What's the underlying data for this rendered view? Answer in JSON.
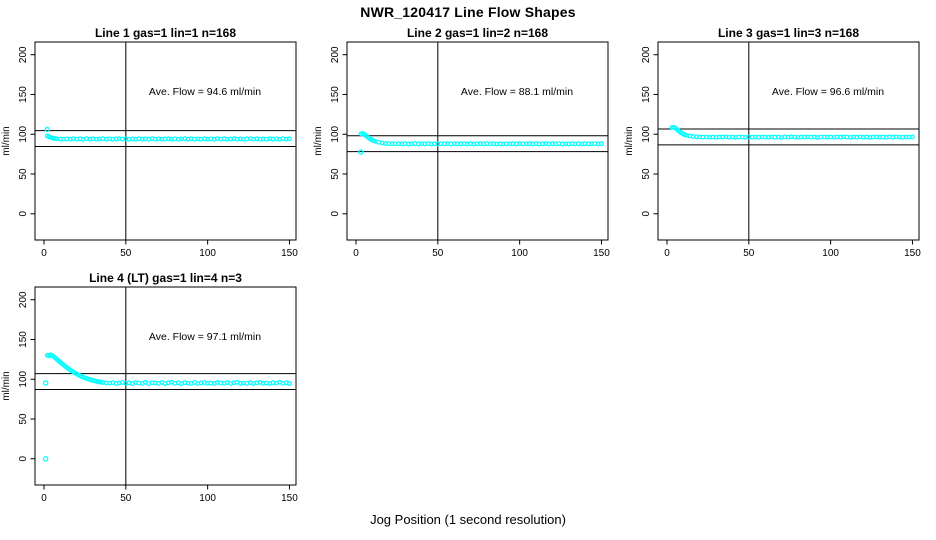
{
  "page": {
    "title": "NWR_120417  Line Flow Shapes",
    "xlabel": "Jog Position (1 second resolution)"
  },
  "style": {
    "point_color": "#00FFFF",
    "line_color": "#000000",
    "background": "#FFFFFF"
  },
  "chart_data": [
    {
      "type": "scatter",
      "title": "Line 1 gas=1 lin=1 n=168",
      "annotation": "Ave. Flow =  94.6  ml/min",
      "ave_flow_ml_min": 94.6,
      "ylabel": "ml/min",
      "xticks": [
        0,
        50,
        100,
        150
      ],
      "yticks": [
        0,
        50,
        100,
        150,
        200
      ],
      "xlim": [
        -5.5,
        154
      ],
      "ylim": [
        -33,
        216
      ],
      "vline_x": 50,
      "hlines": [
        104.6,
        84.6
      ],
      "grid": false,
      "legend": "none",
      "outliers": [
        [
          2,
          106
        ]
      ],
      "points": [
        [
          2,
          97.8
        ],
        [
          3,
          96.9
        ],
        [
          4,
          96.2
        ],
        [
          5,
          95.3
        ],
        [
          6,
          94.8
        ],
        [
          7,
          94.5
        ],
        [
          8,
          94.2
        ],
        [
          10,
          94.0
        ],
        [
          12,
          93.9
        ],
        [
          14,
          94.1
        ],
        [
          16,
          93.7
        ],
        [
          18,
          94.4
        ],
        [
          20,
          93.8
        ],
        [
          22,
          94.2
        ],
        [
          24,
          93.6
        ],
        [
          26,
          94.5
        ],
        [
          28,
          93.9
        ],
        [
          30,
          94.3
        ],
        [
          32,
          93.7
        ],
        [
          34,
          94.0
        ],
        [
          36,
          94.4
        ],
        [
          38,
          93.8
        ],
        [
          40,
          94.2
        ],
        [
          42,
          93.6
        ],
        [
          44,
          94.1
        ],
        [
          46,
          94.5
        ],
        [
          48,
          93.9
        ],
        [
          50,
          94.3
        ],
        [
          52,
          93.7
        ],
        [
          54,
          94.1
        ],
        [
          56,
          93.7
        ],
        [
          58,
          94.4
        ],
        [
          60,
          93.8
        ],
        [
          62,
          94.2
        ],
        [
          64,
          93.6
        ],
        [
          66,
          94.5
        ],
        [
          68,
          93.9
        ],
        [
          70,
          94.3
        ],
        [
          72,
          93.7
        ],
        [
          74,
          94.0
        ],
        [
          76,
          94.4
        ],
        [
          78,
          93.8
        ],
        [
          80,
          94.2
        ],
        [
          82,
          93.6
        ],
        [
          84,
          94.1
        ],
        [
          86,
          94.5
        ],
        [
          88,
          93.9
        ],
        [
          90,
          94.3
        ],
        [
          92,
          93.7
        ],
        [
          94,
          94.1
        ],
        [
          96,
          93.7
        ],
        [
          98,
          94.4
        ],
        [
          100,
          93.8
        ],
        [
          102,
          94.2
        ],
        [
          104,
          93.6
        ],
        [
          106,
          94.5
        ],
        [
          108,
          93.9
        ],
        [
          110,
          94.3
        ],
        [
          112,
          93.7
        ],
        [
          114,
          94.0
        ],
        [
          116,
          94.4
        ],
        [
          118,
          93.8
        ],
        [
          120,
          94.2
        ],
        [
          122,
          93.6
        ],
        [
          124,
          94.1
        ],
        [
          126,
          94.5
        ],
        [
          128,
          93.9
        ],
        [
          130,
          94.3
        ],
        [
          132,
          93.7
        ],
        [
          134,
          94.1
        ],
        [
          136,
          93.7
        ],
        [
          138,
          94.4
        ],
        [
          140,
          93.8
        ],
        [
          142,
          94.2
        ],
        [
          144,
          93.6
        ],
        [
          146,
          94.5
        ],
        [
          148,
          93.9
        ],
        [
          150,
          94.3
        ]
      ]
    },
    {
      "type": "scatter",
      "title": "Line 2 gas=1 lin=2 n=168",
      "annotation": "Ave. Flow =  88.1  ml/min",
      "ave_flow_ml_min": 88.1,
      "ylabel": "ml/min",
      "xticks": [
        0,
        50,
        100,
        150
      ],
      "yticks": [
        0,
        50,
        100,
        150,
        200
      ],
      "xlim": [
        -5.5,
        154
      ],
      "ylim": [
        -33,
        216
      ],
      "vline_x": 50,
      "hlines": [
        98.1,
        78.1
      ],
      "grid": false,
      "legend": "none",
      "outliers": [
        [
          3,
          77.5
        ]
      ],
      "points": [
        [
          3,
          100.6
        ],
        [
          4,
          100.9
        ],
        [
          5,
          100.2
        ],
        [
          6,
          98.3
        ],
        [
          7,
          96.5
        ],
        [
          8,
          95.0
        ],
        [
          9,
          93.7
        ],
        [
          10,
          92.6
        ],
        [
          11,
          91.7
        ],
        [
          12,
          90.9
        ],
        [
          14,
          89.8
        ],
        [
          16,
          89.0
        ],
        [
          18,
          88.5
        ],
        [
          20,
          88.2
        ],
        [
          22,
          88.0
        ],
        [
          24,
          87.9
        ],
        [
          26,
          88.2
        ],
        [
          28,
          87.8
        ],
        [
          30,
          88.1
        ],
        [
          32,
          87.7
        ],
        [
          34,
          88.0
        ],
        [
          36,
          88.3
        ],
        [
          38,
          87.8
        ],
        [
          40,
          88.1
        ],
        [
          42,
          87.9
        ],
        [
          44,
          88.2
        ],
        [
          46,
          87.7
        ],
        [
          48,
          88.0
        ],
        [
          50,
          87.8
        ],
        [
          52,
          88.2
        ],
        [
          54,
          87.9
        ],
        [
          56,
          88.1
        ],
        [
          58,
          87.7
        ],
        [
          60,
          88.3
        ],
        [
          62,
          87.9
        ],
        [
          64,
          88.0
        ],
        [
          66,
          88.2
        ],
        [
          68,
          87.8
        ],
        [
          70,
          88.1
        ],
        [
          72,
          87.7
        ],
        [
          74,
          88.0
        ],
        [
          76,
          88.3
        ],
        [
          78,
          87.8
        ],
        [
          80,
          88.1
        ],
        [
          82,
          87.9
        ],
        [
          84,
          88.2
        ],
        [
          86,
          87.7
        ],
        [
          88,
          88.0
        ],
        [
          90,
          87.8
        ],
        [
          92,
          88.2
        ],
        [
          94,
          87.9
        ],
        [
          96,
          88.1
        ],
        [
          98,
          87.7
        ],
        [
          100,
          88.3
        ],
        [
          102,
          87.9
        ],
        [
          104,
          88.0
        ],
        [
          106,
          88.2
        ],
        [
          108,
          87.8
        ],
        [
          110,
          88.1
        ],
        [
          112,
          87.7
        ],
        [
          114,
          88.0
        ],
        [
          116,
          88.3
        ],
        [
          118,
          87.8
        ],
        [
          120,
          88.1
        ],
        [
          122,
          87.9
        ],
        [
          124,
          88.2
        ],
        [
          126,
          87.7
        ],
        [
          128,
          88.0
        ],
        [
          130,
          87.8
        ],
        [
          132,
          88.2
        ],
        [
          134,
          87.9
        ],
        [
          136,
          88.1
        ],
        [
          138,
          87.7
        ],
        [
          140,
          88.3
        ],
        [
          142,
          87.9
        ],
        [
          144,
          88.0
        ],
        [
          146,
          88.2
        ],
        [
          148,
          87.8
        ],
        [
          150,
          88.1
        ]
      ]
    },
    {
      "type": "scatter",
      "title": "Line 3 gas=1 lin=3 n=168",
      "annotation": "Ave. Flow =  96.6  ml/min",
      "ave_flow_ml_min": 96.6,
      "ylabel": "ml/min",
      "xticks": [
        0,
        50,
        100,
        150
      ],
      "yticks": [
        0,
        50,
        100,
        150,
        200
      ],
      "xlim": [
        -5.5,
        154
      ],
      "ylim": [
        -33,
        216
      ],
      "vline_x": 50,
      "hlines": [
        106.6,
        86.6
      ],
      "grid": false,
      "legend": "none",
      "outliers": [],
      "points": [
        [
          3,
          108.3
        ],
        [
          4,
          108.7
        ],
        [
          5,
          107.9
        ],
        [
          6,
          106.2
        ],
        [
          7,
          104.3
        ],
        [
          8,
          102.7
        ],
        [
          9,
          101.3
        ],
        [
          10,
          100.2
        ],
        [
          11,
          99.3
        ],
        [
          12,
          98.6
        ],
        [
          14,
          97.7
        ],
        [
          16,
          97.1
        ],
        [
          18,
          96.8
        ],
        [
          20,
          96.6
        ],
        [
          22,
          96.4
        ],
        [
          24,
          96.7
        ],
        [
          26,
          96.2
        ],
        [
          28,
          96.5
        ],
        [
          30,
          96.1
        ],
        [
          32,
          96.6
        ],
        [
          34,
          96.3
        ],
        [
          36,
          96.8
        ],
        [
          38,
          96.2
        ],
        [
          40,
          96.5
        ],
        [
          42,
          96.0
        ],
        [
          44,
          96.6
        ],
        [
          46,
          96.4
        ],
        [
          48,
          96.1
        ],
        [
          50,
          96.7
        ],
        [
          52,
          96.3
        ],
        [
          54,
          96.5
        ],
        [
          56,
          96.2
        ],
        [
          58,
          96.6
        ],
        [
          60,
          96.4
        ],
        [
          62,
          96.1
        ],
        [
          64,
          96.7
        ],
        [
          66,
          96.3
        ],
        [
          68,
          96.5
        ],
        [
          70,
          96.0
        ],
        [
          72,
          96.6
        ],
        [
          74,
          96.2
        ],
        [
          76,
          96.8
        ],
        [
          78,
          96.4
        ],
        [
          80,
          96.1
        ],
        [
          82,
          96.5
        ],
        [
          84,
          96.3
        ],
        [
          86,
          96.7
        ],
        [
          88,
          96.2
        ],
        [
          90,
          96.6
        ],
        [
          92,
          96.0
        ],
        [
          94,
          96.4
        ],
        [
          96,
          96.7
        ],
        [
          98,
          96.3
        ],
        [
          100,
          96.5
        ],
        [
          102,
          96.1
        ],
        [
          104,
          96.6
        ],
        [
          106,
          96.2
        ],
        [
          108,
          96.8
        ],
        [
          110,
          96.4
        ],
        [
          112,
          96.1
        ],
        [
          114,
          96.5
        ],
        [
          116,
          96.3
        ],
        [
          118,
          96.7
        ],
        [
          120,
          96.2
        ],
        [
          122,
          96.6
        ],
        [
          124,
          96.0
        ],
        [
          126,
          96.4
        ],
        [
          128,
          96.7
        ],
        [
          130,
          96.3
        ],
        [
          132,
          96.5
        ],
        [
          134,
          96.1
        ],
        [
          136,
          96.6
        ],
        [
          138,
          96.2
        ],
        [
          140,
          96.8
        ],
        [
          142,
          96.4
        ],
        [
          144,
          96.1
        ],
        [
          146,
          96.5
        ],
        [
          148,
          96.3
        ],
        [
          150,
          96.6
        ]
      ]
    },
    {
      "type": "scatter",
      "title": "Line 4 (LT) gas=1 lin=4 n=3",
      "annotation": "Ave. Flow =  97.1  ml/min",
      "ave_flow_ml_min": 97.1,
      "ylabel": "ml/min",
      "xticks": [
        0,
        50,
        100,
        150
      ],
      "yticks": [
        0,
        50,
        100,
        150,
        200
      ],
      "xlim": [
        -5.5,
        154
      ],
      "ylim": [
        -33,
        216
      ],
      "vline_x": 50,
      "hlines": [
        107.1,
        87.1
      ],
      "grid": false,
      "legend": "none",
      "outliers": [
        [
          1,
          95.2
        ],
        [
          1,
          0
        ]
      ],
      "points": [
        [
          2,
          130.2
        ],
        [
          3,
          129.5
        ],
        [
          4,
          130.8
        ],
        [
          5,
          129.9
        ],
        [
          6,
          128.3
        ],
        [
          7,
          126.6
        ],
        [
          8,
          124.8
        ],
        [
          9,
          123.0
        ],
        [
          10,
          121.2
        ],
        [
          11,
          119.5
        ],
        [
          12,
          117.8
        ],
        [
          13,
          116.2
        ],
        [
          14,
          114.6
        ],
        [
          15,
          113.1
        ],
        [
          16,
          111.7
        ],
        [
          17,
          110.3
        ],
        [
          18,
          109.0
        ],
        [
          19,
          107.8
        ],
        [
          20,
          106.6
        ],
        [
          21,
          105.5
        ],
        [
          22,
          104.5
        ],
        [
          23,
          103.5
        ],
        [
          24,
          102.6
        ],
        [
          25,
          101.8
        ],
        [
          26,
          101.0
        ],
        [
          27,
          100.3
        ],
        [
          28,
          99.6
        ],
        [
          29,
          99.0
        ],
        [
          30,
          98.4
        ],
        [
          31,
          97.9
        ],
        [
          32,
          97.4
        ],
        [
          33,
          97.0
        ],
        [
          34,
          96.6
        ],
        [
          35,
          96.2
        ],
        [
          36,
          95.9
        ],
        [
          38,
          95.4
        ],
        [
          40,
          95.0
        ],
        [
          42,
          95.8
        ],
        [
          44,
          94.6
        ],
        [
          46,
          95.3
        ],
        [
          48,
          96.1
        ],
        [
          50,
          94.8
        ],
        [
          52,
          95.5
        ],
        [
          54,
          94.4
        ],
        [
          56,
          95.9
        ],
        [
          58,
          95.1
        ],
        [
          60,
          94.7
        ],
        [
          62,
          96.0
        ],
        [
          64,
          94.5
        ],
        [
          66,
          95.6
        ],
        [
          68,
          95.2
        ],
        [
          70,
          94.8
        ],
        [
          72,
          95.9
        ],
        [
          74,
          94.6
        ],
        [
          76,
          95.3
        ],
        [
          78,
          96.2
        ],
        [
          80,
          94.9
        ],
        [
          82,
          95.5
        ],
        [
          84,
          94.4
        ],
        [
          86,
          95.8
        ],
        [
          88,
          95.0
        ],
        [
          90,
          94.7
        ],
        [
          92,
          96.1
        ],
        [
          94,
          94.5
        ],
        [
          96,
          95.4
        ],
        [
          98,
          95.9
        ],
        [
          100,
          94.8
        ],
        [
          102,
          95.2
        ],
        [
          104,
          94.6
        ],
        [
          106,
          96.0
        ],
        [
          108,
          95.3
        ],
        [
          110,
          94.9
        ],
        [
          112,
          95.7
        ],
        [
          114,
          94.5
        ],
        [
          116,
          95.5
        ],
        [
          118,
          96.2
        ],
        [
          120,
          94.7
        ],
        [
          122,
          95.1
        ],
        [
          124,
          94.8
        ],
        [
          126,
          95.8
        ],
        [
          128,
          94.6
        ],
        [
          130,
          95.4
        ],
        [
          132,
          96.0
        ],
        [
          134,
          94.9
        ],
        [
          136,
          95.3
        ],
        [
          138,
          94.5
        ],
        [
          140,
          95.7
        ],
        [
          142,
          95.0
        ],
        [
          144,
          96.1
        ],
        [
          146,
          94.8
        ],
        [
          148,
          95.5
        ],
        [
          150,
          94.7
        ]
      ]
    }
  ]
}
